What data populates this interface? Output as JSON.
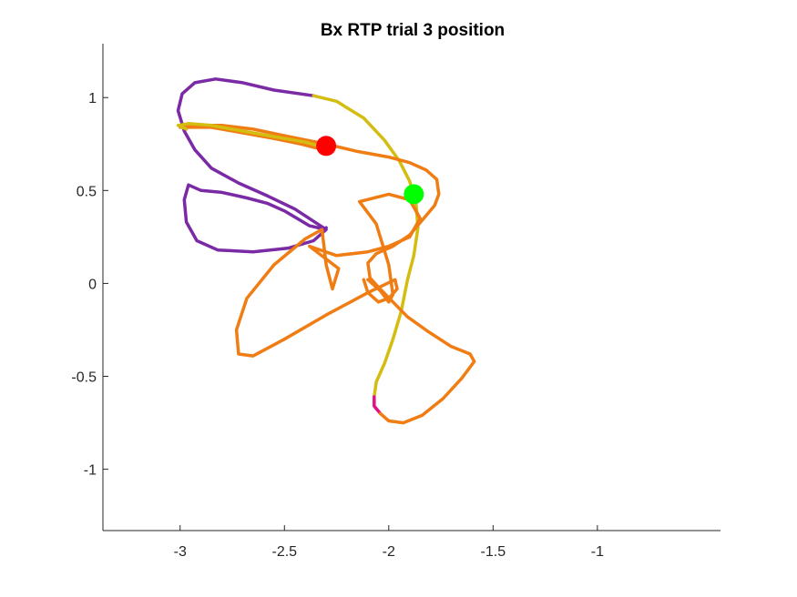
{
  "chart_data": {
    "type": "line",
    "title": "Bx  RTP trial 3 position",
    "xlabel": "",
    "ylabel": "",
    "xlim": [
      -3.37,
      -0.41
    ],
    "ylim": [
      -1.33,
      1.29
    ],
    "grid": false,
    "x_ticks": [
      -3,
      -2.5,
      -2,
      -1.5,
      -1
    ],
    "x_tick_labels": [
      "-3",
      "-2.5",
      "-2",
      "-1.5",
      "-1"
    ],
    "y_ticks": [
      1,
      0.5,
      0,
      -0.5,
      -1
    ],
    "y_tick_labels": [
      "1",
      "0.5",
      "0",
      "-0.5",
      "-1"
    ],
    "series": [
      {
        "name": "segment-1",
        "color": "#7B2AA6",
        "points": [
          [
            -2.36,
            1.01
          ],
          [
            -2.55,
            1.04
          ],
          [
            -2.7,
            1.08
          ],
          [
            -2.83,
            1.1
          ],
          [
            -2.93,
            1.08
          ],
          [
            -2.99,
            1.02
          ],
          [
            -3.01,
            0.93
          ],
          [
            -2.98,
            0.82
          ],
          [
            -2.93,
            0.72
          ],
          [
            -2.85,
            0.62
          ],
          [
            -2.72,
            0.54
          ],
          [
            -2.58,
            0.47
          ],
          [
            -2.45,
            0.4
          ],
          [
            -2.3,
            0.29
          ],
          [
            -2.36,
            0.23
          ],
          [
            -2.48,
            0.19
          ],
          [
            -2.65,
            0.17
          ],
          [
            -2.82,
            0.18
          ],
          [
            -2.92,
            0.23
          ],
          [
            -2.97,
            0.33
          ],
          [
            -2.98,
            0.45
          ],
          [
            -2.96,
            0.53
          ],
          [
            -2.9,
            0.5
          ],
          [
            -2.8,
            0.49
          ],
          [
            -2.68,
            0.46
          ],
          [
            -2.58,
            0.43
          ],
          [
            -2.5,
            0.39
          ],
          [
            -2.44,
            0.35
          ],
          [
            -2.38,
            0.31
          ],
          [
            -2.34,
            0.3
          ],
          [
            -2.31,
            0.29
          ],
          [
            -2.3,
            0.3
          ]
        ]
      },
      {
        "name": "segment-2",
        "color": "#D4BC10",
        "points": [
          [
            -2.36,
            1.01
          ],
          [
            -2.25,
            0.98
          ],
          [
            -2.12,
            0.89
          ],
          [
            -2.02,
            0.77
          ],
          [
            -1.95,
            0.66
          ],
          [
            -1.9,
            0.55
          ],
          [
            -1.87,
            0.44
          ],
          [
            -1.86,
            0.3
          ],
          [
            -1.88,
            0.15
          ],
          [
            -1.91,
            0.02
          ],
          [
            -1.94,
            -0.15
          ],
          [
            -1.98,
            -0.3
          ],
          [
            -2.02,
            -0.43
          ],
          [
            -2.06,
            -0.53
          ],
          [
            -2.07,
            -0.61
          ]
        ]
      },
      {
        "name": "segment-3",
        "color": "#E41089",
        "points": [
          [
            -2.07,
            -0.61
          ],
          [
            -2.07,
            -0.66
          ],
          [
            -2.04,
            -0.7
          ]
        ]
      },
      {
        "name": "segment-4",
        "color": "#F07D14",
        "points": [
          [
            -2.04,
            -0.7
          ],
          [
            -2.0,
            -0.74
          ],
          [
            -1.93,
            -0.75
          ],
          [
            -1.84,
            -0.71
          ],
          [
            -1.74,
            -0.62
          ],
          [
            -1.65,
            -0.51
          ],
          [
            -1.59,
            -0.42
          ],
          [
            -1.61,
            -0.38
          ],
          [
            -1.7,
            -0.34
          ],
          [
            -1.81,
            -0.26
          ],
          [
            -1.91,
            -0.18
          ],
          [
            -1.98,
            -0.1
          ],
          [
            -2.05,
            -0.02
          ],
          [
            -2.09,
            0.03
          ],
          [
            -2.1,
            0.11
          ],
          [
            -2.06,
            0.16
          ],
          [
            -1.98,
            0.2
          ],
          [
            -1.9,
            0.26
          ],
          [
            -1.84,
            0.34
          ],
          [
            -1.78,
            0.42
          ],
          [
            -1.76,
            0.48
          ],
          [
            -1.77,
            0.56
          ],
          [
            -1.82,
            0.61
          ],
          [
            -1.9,
            0.65
          ],
          [
            -2.0,
            0.68
          ],
          [
            -2.15,
            0.71
          ],
          [
            -2.3,
            0.75
          ],
          [
            -2.48,
            0.79
          ],
          [
            -2.65,
            0.83
          ],
          [
            -2.8,
            0.85
          ],
          [
            -2.95,
            0.85
          ],
          [
            -3.0,
            0.84
          ],
          [
            -2.85,
            0.84
          ],
          [
            -2.7,
            0.81
          ],
          [
            -2.55,
            0.78
          ],
          [
            -2.42,
            0.75
          ],
          [
            -2.35,
            0.73
          ],
          [
            -2.3,
            0.73
          ]
        ]
      },
      {
        "name": "segment-5",
        "color": "#D4BC10",
        "points": [
          [
            -2.3,
            0.73
          ],
          [
            -2.4,
            0.76
          ],
          [
            -2.55,
            0.79
          ],
          [
            -2.7,
            0.82
          ],
          [
            -2.85,
            0.85
          ],
          [
            -2.96,
            0.86
          ],
          [
            -3.01,
            0.85
          ],
          [
            -2.97,
            0.83
          ]
        ]
      },
      {
        "name": "segment-6",
        "color": "#F07D14",
        "points": [
          [
            -2.1,
            0.02
          ],
          [
            -2.04,
            -0.04
          ],
          [
            -2.0,
            -0.1
          ],
          [
            -1.98,
            -0.06
          ],
          [
            -2.0,
            0.1
          ],
          [
            -2.06,
            0.32
          ],
          [
            -2.14,
            0.44
          ],
          [
            -2.0,
            0.48
          ],
          [
            -1.9,
            0.45
          ],
          [
            -1.85,
            0.35
          ],
          [
            -1.9,
            0.25
          ],
          [
            -2.0,
            0.2
          ],
          [
            -2.1,
            0.17
          ],
          [
            -2.25,
            0.15
          ],
          [
            -2.38,
            0.2
          ],
          [
            -2.24,
            0.08
          ],
          [
            -2.27,
            -0.03
          ],
          [
            -2.3,
            0.1
          ],
          [
            -2.32,
            0.29
          ],
          [
            -2.4,
            0.24
          ],
          [
            -2.55,
            0.1
          ],
          [
            -2.68,
            -0.08
          ],
          [
            -2.73,
            -0.25
          ],
          [
            -2.72,
            -0.38
          ],
          [
            -2.65,
            -0.39
          ],
          [
            -2.5,
            -0.3
          ],
          [
            -2.3,
            -0.17
          ],
          [
            -2.1,
            -0.05
          ],
          [
            -1.97,
            0.02
          ],
          [
            -1.96,
            -0.03
          ],
          [
            -2.0,
            -0.08
          ],
          [
            -2.05,
            -0.1
          ],
          [
            -2.1,
            -0.05
          ],
          [
            -2.12,
            0.02
          ]
        ]
      }
    ],
    "markers": [
      {
        "name": "start-point",
        "x": -2.3,
        "y": 0.74,
        "color": "#FF0000"
      },
      {
        "name": "end-point",
        "x": -1.88,
        "y": 0.48,
        "color": "#00FF00"
      }
    ]
  }
}
